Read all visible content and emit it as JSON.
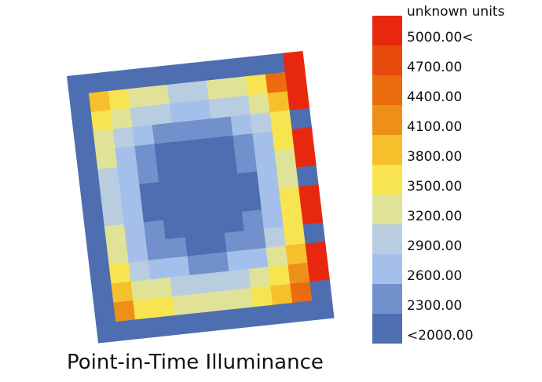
{
  "chart_data": {
    "type": "heatmap",
    "title": "Point-in-Time Illuminance",
    "unit_label": "unknown units",
    "legend": [
      {
        "value": 5000,
        "label": "5000.00<",
        "color": "#e8280e"
      },
      {
        "value": 4700,
        "label": "4700.00",
        "color": "#e84a0d"
      },
      {
        "value": 4400,
        "label": "4400.00",
        "color": "#ea6c0d"
      },
      {
        "value": 4100,
        "label": "4100.00",
        "color": "#ee8f1a"
      },
      {
        "value": 3800,
        "label": "3800.00",
        "color": "#f5c02c"
      },
      {
        "value": 3500,
        "label": "3500.00",
        "color": "#f7e450"
      },
      {
        "value": 3200,
        "label": "3200.00",
        "color": "#e0e298"
      },
      {
        "value": 2900,
        "label": "2900.00",
        "color": "#b8cde0"
      },
      {
        "value": 2600,
        "label": "2600.00",
        "color": "#a4c0ea"
      },
      {
        "value": 2300,
        "label": "2300.00",
        "color": "#7190cc"
      },
      {
        "value": 2000,
        "label": "<2000.00",
        "color": "#4d6eb0"
      }
    ],
    "values": [
      [
        1900,
        1900,
        1900,
        1900,
        1900,
        1900,
        1900,
        1900,
        1900,
        1900,
        1900,
        5200
      ],
      [
        1900,
        4000,
        3600,
        3300,
        3200,
        3100,
        3100,
        3200,
        3400,
        3700,
        4500,
        5200
      ],
      [
        1900,
        3700,
        3300,
        3000,
        2900,
        2800,
        2800,
        2900,
        3100,
        3400,
        3900,
        5200
      ],
      [
        1900,
        3400,
        3000,
        2700,
        2500,
        2400,
        2400,
        2500,
        2700,
        3000,
        3600,
        1900
      ],
      [
        1900,
        3200,
        2800,
        2400,
        2200,
        2100,
        2100,
        2200,
        2400,
        2800,
        3700,
        5200
      ],
      [
        1900,
        3100,
        2700,
        2300,
        2100,
        2000,
        2000,
        2100,
        2300,
        2700,
        3400,
        5200
      ],
      [
        1900,
        3100,
        2600,
        2200,
        2050,
        1950,
        1950,
        2050,
        2200,
        2600,
        3300,
        1900
      ],
      [
        1900,
        3100,
        2600,
        2200,
        2050,
        1950,
        1950,
        2050,
        2200,
        2700,
        3500,
        5200
      ],
      [
        1900,
        3200,
        2700,
        2300,
        2100,
        2000,
        2000,
        2100,
        2300,
        2800,
        3600,
        5200
      ],
      [
        1900,
        3300,
        2800,
        2500,
        2300,
        2200,
        2200,
        2300,
        2500,
        2900,
        3700,
        1900
      ],
      [
        1900,
        3500,
        3100,
        2800,
        2600,
        2500,
        2500,
        2600,
        2800,
        3200,
        3800,
        5200
      ],
      [
        1900,
        3800,
        3400,
        3200,
        3100,
        3000,
        3000,
        3100,
        3300,
        3600,
        4100,
        5200
      ],
      [
        1900,
        4200,
        3700,
        3500,
        3400,
        3300,
        3300,
        3400,
        3600,
        3800,
        4400,
        1900
      ],
      [
        1900,
        1900,
        1900,
        1900,
        1900,
        1900,
        1900,
        1900,
        1900,
        1900,
        1900,
        1900
      ]
    ]
  }
}
